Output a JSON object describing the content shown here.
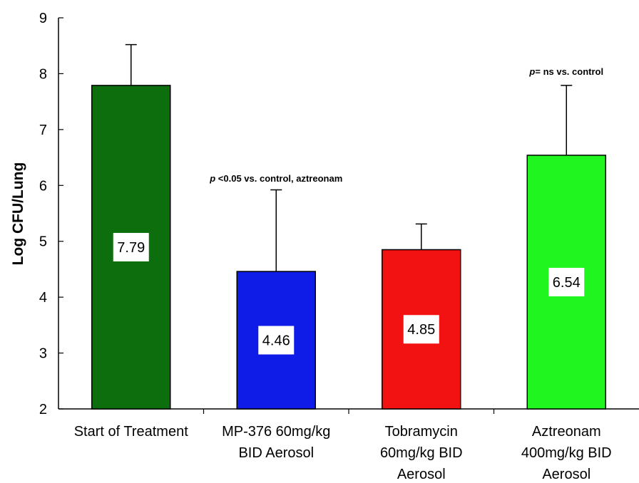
{
  "chart_data": {
    "type": "bar",
    "title": "",
    "xlabel": "",
    "ylabel": "Log CFU/Lung",
    "ylim": [
      2,
      9
    ],
    "yticks": [
      2,
      3,
      4,
      5,
      6,
      7,
      8,
      9
    ],
    "grid": false,
    "categories": [
      [
        "Start of Treatment"
      ],
      [
        "MP-376 60mg/kg",
        "BID Aerosol"
      ],
      [
        "Tobramycin",
        "60mg/kg BID",
        "Aerosol"
      ],
      [
        "Aztreonam",
        "400mg/kg BID",
        "Aerosol"
      ]
    ],
    "values": [
      7.79,
      4.46,
      4.85,
      6.54
    ],
    "value_labels": [
      "7.79",
      "4.46",
      "4.85",
      "6.54"
    ],
    "error_upper": [
      8.52,
      5.92,
      5.31,
      7.79
    ],
    "colors": [
      "#0d6e0d",
      "#0f1be6",
      "#f21212",
      "#20f520"
    ],
    "annotations": [
      {
        "bar_index": 1,
        "prefix": "p",
        "text": " <0.05 vs. control, aztreonam",
        "y": 6.07
      },
      {
        "bar_index": 3,
        "prefix": "p",
        "text": "= ns vs. control",
        "y": 7.98
      }
    ]
  }
}
